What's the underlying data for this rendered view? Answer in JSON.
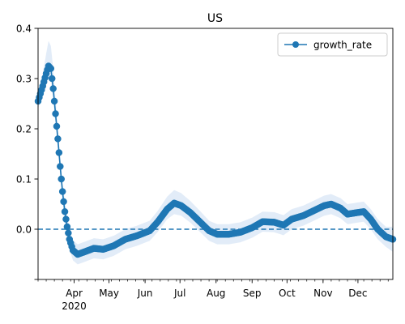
{
  "chart_data": {
    "type": "line",
    "title": "US",
    "xlabel": "",
    "ylabel": "",
    "x_range": [
      "2020-03-01",
      "2020-12-31"
    ],
    "ylim": [
      -0.1,
      0.4
    ],
    "x_ticks": [
      {
        "date": "2020-04-01",
        "label": "Apr"
      },
      {
        "date": "2020-05-01",
        "label": "May"
      },
      {
        "date": "2020-06-01",
        "label": "Jun"
      },
      {
        "date": "2020-07-01",
        "label": "Jul"
      },
      {
        "date": "2020-08-01",
        "label": "Aug"
      },
      {
        "date": "2020-09-01",
        "label": "Sep"
      },
      {
        "date": "2020-10-01",
        "label": "Oct"
      },
      {
        "date": "2020-11-01",
        "label": "Nov"
      },
      {
        "date": "2020-12-01",
        "label": "Dec"
      }
    ],
    "x_year_label": "2020",
    "y_ticks": [
      {
        "value": -0.1,
        "label": ""
      },
      {
        "value": 0.0,
        "label": "0.0"
      },
      {
        "value": 0.1,
        "label": "0.1"
      },
      {
        "value": 0.2,
        "label": "0.2"
      },
      {
        "value": 0.3,
        "label": "0.3"
      },
      {
        "value": 0.4,
        "label": "0.4"
      }
    ],
    "grid": false,
    "legend": {
      "position": "top-right"
    },
    "reference_line": {
      "y": 0.0,
      "style": "dashed"
    },
    "series": [
      {
        "name": "growth_rate",
        "color": "#1f77b4",
        "band_color": "#cfe0f3",
        "marker": "circle",
        "points": [
          {
            "x": "2020-03-01",
            "y": 0.255,
            "lo": 0.24,
            "hi": 0.27
          },
          {
            "x": "2020-03-05",
            "y": 0.285,
            "lo": 0.27,
            "hi": 0.31
          },
          {
            "x": "2020-03-08",
            "y": 0.31,
            "lo": 0.29,
            "hi": 0.35
          },
          {
            "x": "2020-03-10",
            "y": 0.325,
            "lo": 0.3,
            "hi": 0.375
          },
          {
            "x": "2020-03-12",
            "y": 0.32,
            "lo": 0.295,
            "hi": 0.365
          },
          {
            "x": "2020-03-14",
            "y": 0.28,
            "lo": 0.26,
            "hi": 0.32
          },
          {
            "x": "2020-03-16",
            "y": 0.23,
            "lo": 0.21,
            "hi": 0.26
          },
          {
            "x": "2020-03-18",
            "y": 0.18,
            "lo": 0.16,
            "hi": 0.2
          },
          {
            "x": "2020-03-20",
            "y": 0.125,
            "lo": 0.105,
            "hi": 0.145
          },
          {
            "x": "2020-03-22",
            "y": 0.075,
            "lo": 0.055,
            "hi": 0.095
          },
          {
            "x": "2020-03-24",
            "y": 0.035,
            "lo": 0.015,
            "hi": 0.055
          },
          {
            "x": "2020-03-26",
            "y": 0.005,
            "lo": -0.015,
            "hi": 0.025
          },
          {
            "x": "2020-03-28",
            "y": -0.02,
            "lo": -0.04,
            "hi": 0.0
          },
          {
            "x": "2020-03-31",
            "y": -0.042,
            "lo": -0.062,
            "hi": -0.022
          },
          {
            "x": "2020-04-04",
            "y": -0.05,
            "lo": -0.07,
            "hi": -0.03
          },
          {
            "x": "2020-04-10",
            "y": -0.045,
            "lo": -0.065,
            "hi": -0.025
          },
          {
            "x": "2020-04-18",
            "y": -0.038,
            "lo": -0.058,
            "hi": -0.018
          },
          {
            "x": "2020-04-26",
            "y": -0.04,
            "lo": -0.06,
            "hi": -0.02
          },
          {
            "x": "2020-05-05",
            "y": -0.033,
            "lo": -0.053,
            "hi": -0.013
          },
          {
            "x": "2020-05-15",
            "y": -0.02,
            "lo": -0.04,
            "hi": 0.0
          },
          {
            "x": "2020-05-25",
            "y": -0.013,
            "lo": -0.033,
            "hi": 0.007
          },
          {
            "x": "2020-06-05",
            "y": -0.003,
            "lo": -0.023,
            "hi": 0.017
          },
          {
            "x": "2020-06-12",
            "y": 0.015,
            "lo": -0.005,
            "hi": 0.037
          },
          {
            "x": "2020-06-20",
            "y": 0.04,
            "lo": 0.02,
            "hi": 0.065
          },
          {
            "x": "2020-06-26",
            "y": 0.052,
            "lo": 0.03,
            "hi": 0.078
          },
          {
            "x": "2020-07-02",
            "y": 0.047,
            "lo": 0.027,
            "hi": 0.072
          },
          {
            "x": "2020-07-10",
            "y": 0.033,
            "lo": 0.013,
            "hi": 0.056
          },
          {
            "x": "2020-07-18",
            "y": 0.015,
            "lo": -0.005,
            "hi": 0.037
          },
          {
            "x": "2020-07-26",
            "y": -0.003,
            "lo": -0.023,
            "hi": 0.017
          },
          {
            "x": "2020-08-02",
            "y": -0.01,
            "lo": -0.03,
            "hi": 0.01
          },
          {
            "x": "2020-08-12",
            "y": -0.01,
            "lo": -0.03,
            "hi": 0.01
          },
          {
            "x": "2020-08-22",
            "y": -0.006,
            "lo": -0.026,
            "hi": 0.014
          },
          {
            "x": "2020-09-01",
            "y": 0.003,
            "lo": -0.017,
            "hi": 0.023
          },
          {
            "x": "2020-09-10",
            "y": 0.015,
            "lo": -0.005,
            "hi": 0.035
          },
          {
            "x": "2020-09-20",
            "y": 0.014,
            "lo": -0.006,
            "hi": 0.034
          },
          {
            "x": "2020-09-28",
            "y": 0.008,
            "lo": -0.012,
            "hi": 0.028
          },
          {
            "x": "2020-10-05",
            "y": 0.02,
            "lo": 0.0,
            "hi": 0.04
          },
          {
            "x": "2020-10-15",
            "y": 0.027,
            "lo": 0.007,
            "hi": 0.047
          },
          {
            "x": "2020-10-25",
            "y": 0.038,
            "lo": 0.018,
            "hi": 0.058
          },
          {
            "x": "2020-11-02",
            "y": 0.047,
            "lo": 0.027,
            "hi": 0.067
          },
          {
            "x": "2020-11-08",
            "y": 0.05,
            "lo": 0.03,
            "hi": 0.07
          },
          {
            "x": "2020-11-16",
            "y": 0.042,
            "lo": 0.022,
            "hi": 0.062
          },
          {
            "x": "2020-11-22",
            "y": 0.03,
            "lo": 0.01,
            "hi": 0.05
          },
          {
            "x": "2020-11-30",
            "y": 0.033,
            "lo": 0.013,
            "hi": 0.053
          },
          {
            "x": "2020-12-06",
            "y": 0.035,
            "lo": 0.015,
            "hi": 0.055
          },
          {
            "x": "2020-12-12",
            "y": 0.02,
            "lo": 0.0,
            "hi": 0.04
          },
          {
            "x": "2020-12-18",
            "y": 0.0,
            "lo": -0.02,
            "hi": 0.02
          },
          {
            "x": "2020-12-25",
            "y": -0.015,
            "lo": -0.035,
            "hi": 0.005
          },
          {
            "x": "2020-12-31",
            "y": -0.02,
            "lo": -0.045,
            "hi": 0.005
          }
        ]
      }
    ]
  }
}
